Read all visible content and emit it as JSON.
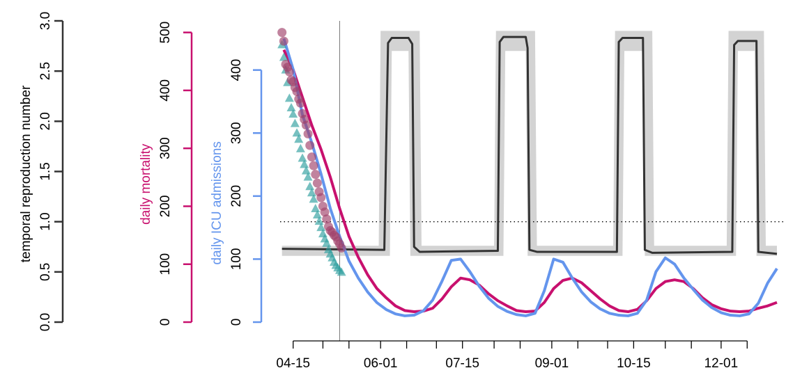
{
  "chart_data": {
    "type": "line",
    "xlim": [
      "04-08",
      "12-31"
    ],
    "xticks": [
      "04-15",
      {
        "value": "05-01"
      },
      {
        "value": "05-15"
      },
      "06-01",
      {
        "value": "06-15"
      },
      {
        "value": "07-01"
      },
      "07-15",
      {
        "value": "08-01"
      },
      {
        "value": "08-15"
      },
      "09-01",
      {
        "value": "09-15"
      },
      {
        "value": "10-01"
      },
      "10-15",
      {
        "value": "11-01"
      },
      {
        "value": "11-15"
      },
      "12-01",
      {
        "value": "12-15"
      }
    ],
    "vline": "05-10",
    "hline": {
      "value": 1,
      "axis": 0
    },
    "axes": [
      {
        "label": "temporal reproduction number",
        "lim": [
          0,
          3
        ],
        "color": "#333333",
        "ticks": [
          {
            "value": 0,
            "label": "0.0"
          },
          0.5,
          {
            "value": 1,
            "label": "1.0"
          },
          1.5,
          {
            "value": 2,
            "label": "2.0"
          },
          2.5,
          {
            "value": 3,
            "label": "3.0"
          }
        ]
      },
      {
        "label": "daily mortality",
        "lim": [
          0,
          520
        ],
        "color": "#c8106e",
        "ticks": [
          0,
          100,
          200,
          300,
          400,
          500
        ]
      },
      {
        "label": "daily ICU admissions",
        "lim": [
          0,
          478
        ],
        "color": "#6495ed",
        "ticks": [
          0,
          100,
          200,
          300,
          400
        ]
      }
    ],
    "r_band": {
      "axis": 0,
      "color": "#d3d3d3",
      "x": [
        "04-09",
        "05-31",
        "06-01",
        "06-06",
        "06-07",
        "06-16",
        "06-17",
        "06-22",
        "06-23",
        "08-01",
        "08-02",
        "08-06",
        "08-07",
        "08-18",
        "08-19",
        "08-23",
        "08-24",
        "10-04",
        "10-05",
        "10-09",
        "10-10",
        "10-20",
        "10-21",
        "10-25",
        "10-26",
        "12-04",
        "12-05",
        "12-09",
        "12-10",
        "12-19",
        "12-20",
        "12-24",
        "12-25",
        "12-31"
      ],
      "upper": [
        0.76,
        0.76,
        2.9,
        2.9,
        2.9,
        2.9,
        2.9,
        2.9,
        0.76,
        0.76,
        2.9,
        2.9,
        2.9,
        2.9,
        2.9,
        2.9,
        0.76,
        0.76,
        2.9,
        2.9,
        2.9,
        2.9,
        2.9,
        2.9,
        0.76,
        0.76,
        2.9,
        2.9,
        2.9,
        2.9,
        2.9,
        2.9,
        0.76,
        0.76
      ],
      "lower": [
        0.66,
        0.66,
        0.66,
        0.66,
        2.7,
        2.7,
        0.66,
        0.66,
        0.66,
        0.66,
        0.66,
        0.66,
        2.7,
        2.7,
        0.66,
        0.66,
        0.66,
        0.66,
        0.66,
        0.66,
        2.7,
        2.7,
        0.66,
        0.66,
        0.66,
        0.66,
        0.66,
        0.66,
        2.7,
        2.7,
        0.66,
        0.66,
        0.66,
        0.66
      ]
    },
    "r_step": {
      "axis": 0,
      "color": "#333333",
      "x": [
        "04-09",
        "06-03",
        "06-05",
        "06-07",
        "06-16",
        "06-18",
        "06-19",
        "06-22",
        "08-03",
        "08-04",
        "08-06",
        "08-18",
        "08-19",
        "08-20",
        "08-24",
        "10-06",
        "10-07",
        "10-09",
        "10-20",
        "10-21",
        "10-25",
        "12-07",
        "12-08",
        "12-10",
        "12-20",
        "12-21",
        "12-31"
      ],
      "values": [
        0.73,
        0.72,
        2.78,
        2.83,
        2.83,
        2.77,
        0.75,
        0.7,
        0.71,
        2.79,
        2.84,
        2.84,
        2.73,
        0.72,
        0.7,
        0.7,
        2.79,
        2.83,
        2.83,
        0.72,
        0.69,
        0.7,
        2.76,
        2.8,
        2.8,
        0.7,
        0.68
      ]
    },
    "x": [
      "04-10",
      "04-15",
      "04-20",
      "04-25",
      "04-30",
      "05-05",
      "05-10",
      "05-15",
      "05-20",
      "05-25",
      "05-30",
      "06-04",
      "06-09",
      "06-14",
      "06-19",
      "06-24",
      "06-29",
      "07-04",
      "07-09",
      "07-14",
      "07-19",
      "07-24",
      "07-29",
      "08-03",
      "08-08",
      "08-13",
      "08-18",
      "08-23",
      "08-28",
      "09-02",
      "09-07",
      "09-12",
      "09-17",
      "09-22",
      "09-27",
      "10-02",
      "10-07",
      "10-12",
      "10-17",
      "10-22",
      "10-27",
      "11-01",
      "11-06",
      "11-11",
      "11-16",
      "11-21",
      "11-26",
      "12-01",
      "12-06",
      "12-11",
      "12-16",
      "12-21",
      "12-26",
      "12-31"
    ],
    "series": [
      {
        "axis": 1,
        "color": "#c8106e",
        "values": [
          470,
          436,
          388,
          340,
          298,
          250,
          196,
          148,
          112,
          82,
          58,
          42,
          28,
          20,
          18,
          19,
          24,
          40,
          61,
          76,
          73,
          64,
          49,
          37,
          28,
          20,
          18,
          19,
          34,
          58,
          72,
          76,
          68,
          54,
          40,
          28,
          20,
          18,
          22,
          37,
          58,
          70,
          73,
          70,
          58,
          42,
          30,
          23,
          19,
          18,
          19,
          24,
          28,
          34
        ]
      },
      {
        "axis": 2,
        "color": "#6495ed",
        "values": [
          450,
          401,
          329,
          285,
          235,
          180,
          136,
          97,
          70,
          48,
          31,
          20,
          13,
          10,
          11,
          18,
          35,
          65,
          98,
          100,
          80,
          57,
          38,
          25,
          17,
          12,
          10,
          14,
          50,
          100,
          95,
          70,
          48,
          32,
          21,
          14,
          11,
          10,
          14,
          35,
          80,
          102,
          92,
          70,
          52,
          35,
          23,
          15,
          11,
          10,
          13,
          30,
          62,
          85
        ]
      }
    ],
    "observations": {
      "x": [
        "04-09",
        "04-10",
        "04-11",
        "04-12",
        "04-13",
        "04-14",
        "04-15",
        "04-16",
        "04-17",
        "04-18",
        "04-19",
        "04-20",
        "04-21",
        "04-22",
        "04-23",
        "04-24",
        "04-25",
        "04-26",
        "04-27",
        "04-28",
        "04-29",
        "04-30",
        "05-01",
        "05-02",
        "05-03",
        "05-04",
        "05-05",
        "05-06",
        "05-07",
        "05-08",
        "05-09",
        "05-10",
        "05-11"
      ],
      "series": [
        {
          "axis": 2,
          "color": "#2e9e9e",
          "shape": "triangle",
          "values": [
            440,
            420,
            400,
            380,
            355,
            340,
            330,
            315,
            300,
            290,
            275,
            260,
            250,
            240,
            230,
            215,
            205,
            195,
            180,
            170,
            160,
            150,
            140,
            132,
            125,
            115,
            108,
            102,
            95,
            90,
            86,
            82,
            79
          ]
        },
        {
          "axis": 1,
          "color": "#a0406a",
          "shape": "circle",
          "values": [
            500,
            485,
            445,
            440,
            432,
            418,
            415,
            405,
            398,
            385,
            378,
            360,
            350,
            340,
            325,
            305,
            285,
            270,
            255,
            240,
            225,
            215,
            200,
            190,
            178,
            165,
            158,
            155,
            150,
            147,
            140,
            135,
            128
          ]
        }
      ]
    }
  }
}
